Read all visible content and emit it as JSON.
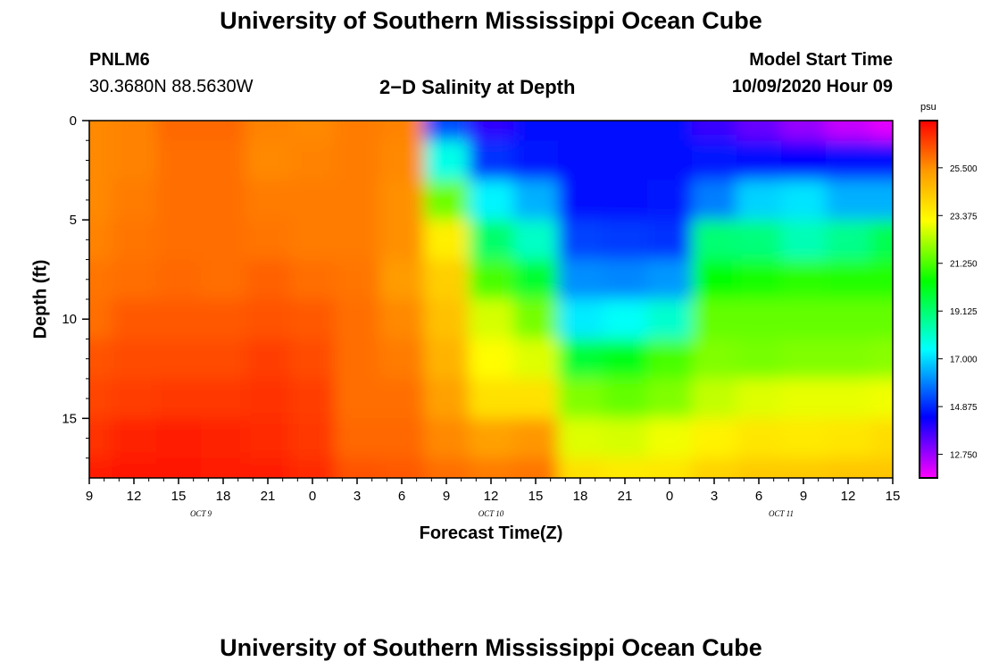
{
  "title": "University of Southern Mississippi Ocean Cube",
  "footer_title": "University of Southern Mississippi Ocean Cube",
  "station": {
    "id": "PNLM6",
    "coords": "30.3680N 88.5630W"
  },
  "plot_title": "2−D Salinity at Depth",
  "model_start": {
    "label": "Model Start Time",
    "value": "10/09/2020 Hour 09"
  },
  "chart_data": {
    "type": "heatmap",
    "title": "2-D Salinity at Depth",
    "xlabel": "Forecast Time(Z)",
    "ylabel": "Depth (ft)",
    "x_tick_labels": [
      "9",
      "12",
      "15",
      "18",
      "21",
      "0",
      "3",
      "6",
      "9",
      "12",
      "15",
      "18",
      "21",
      "0",
      "3",
      "6",
      "9",
      "12",
      "15"
    ],
    "day_labels": [
      {
        "text": "OCT 9",
        "tick_index": 2.5
      },
      {
        "text": "OCT 10",
        "tick_index": 9
      },
      {
        "text": "OCT 11",
        "tick_index": 15.5
      }
    ],
    "y_ticks": [
      0,
      5,
      10,
      15
    ],
    "ylim": [
      0,
      18
    ],
    "xlim_hours": [
      0,
      54
    ],
    "colorbar": {
      "unit": "psu",
      "tick_labels": [
        "25.500",
        "23.375",
        "21.250",
        "19.125",
        "17.000",
        "14.875",
        "12.750"
      ],
      "range": [
        11.7,
        27.6
      ]
    },
    "depths_ft": [
      0,
      2,
      4,
      6,
      8,
      10,
      12,
      14,
      16,
      18
    ],
    "time_hours": [
      0,
      3,
      6,
      9,
      12,
      15,
      18,
      21,
      24,
      27,
      30,
      33,
      36,
      39,
      42,
      45,
      48,
      51,
      54
    ],
    "salinity": [
      [
        25.6,
        25.7,
        26.1,
        26.1,
        25.7,
        25.6,
        25.8,
        25.7,
        15.3,
        13.9,
        14.5,
        14.5,
        14.6,
        14.5,
        13.8,
        13.3,
        12.8,
        12.3,
        12.0
      ],
      [
        25.6,
        25.7,
        26.0,
        26.0,
        25.6,
        25.7,
        25.8,
        25.6,
        17.7,
        15.0,
        14.7,
        14.6,
        14.6,
        14.6,
        14.7,
        14.5,
        14.4,
        14.5,
        14.6
      ],
      [
        25.6,
        25.8,
        26.0,
        26.0,
        25.8,
        25.8,
        25.8,
        25.5,
        21.6,
        17.3,
        16.5,
        14.6,
        14.6,
        14.7,
        15.9,
        16.9,
        17.1,
        16.5,
        16.5
      ],
      [
        25.7,
        25.9,
        26.0,
        26.0,
        25.9,
        25.8,
        25.8,
        25.5,
        23.5,
        19.2,
        18.1,
        15.2,
        15.1,
        15.0,
        19.1,
        19.0,
        18.3,
        18.8,
        19.5
      ],
      [
        25.9,
        26.0,
        26.1,
        26.0,
        26.2,
        26.0,
        25.9,
        25.3,
        24.2,
        21.2,
        19.9,
        16.1,
        16.0,
        16.2,
        20.4,
        20.7,
        20.9,
        20.8,
        20.8
      ],
      [
        26.0,
        26.3,
        26.3,
        26.3,
        26.4,
        26.3,
        26.0,
        25.6,
        24.5,
        22.7,
        21.7,
        17.2,
        17.5,
        18.0,
        21.5,
        21.5,
        21.5,
        21.5,
        21.5
      ],
      [
        26.4,
        26.5,
        26.5,
        26.5,
        26.7,
        26.5,
        26.0,
        25.8,
        24.8,
        23.2,
        22.8,
        19.8,
        20.2,
        21.2,
        21.8,
        21.7,
        21.8,
        21.8,
        21.9
      ],
      [
        26.6,
        26.7,
        26.8,
        26.8,
        26.9,
        26.7,
        26.0,
        26.0,
        25.2,
        23.8,
        23.8,
        21.8,
        21.5,
        21.8,
        22.5,
        22.8,
        22.9,
        22.9,
        23.0
      ],
      [
        26.9,
        27.1,
        27.2,
        27.1,
        27.0,
        26.8,
        26.1,
        26.1,
        25.6,
        25.2,
        25.4,
        22.8,
        22.7,
        23.0,
        23.4,
        23.7,
        23.6,
        23.7,
        23.9
      ],
      [
        27.2,
        27.3,
        27.3,
        27.2,
        27.2,
        27.0,
        26.4,
        26.3,
        26.0,
        25.8,
        25.9,
        23.8,
        23.6,
        23.7,
        24.1,
        24.3,
        24.3,
        24.4,
        24.4
      ]
    ]
  }
}
